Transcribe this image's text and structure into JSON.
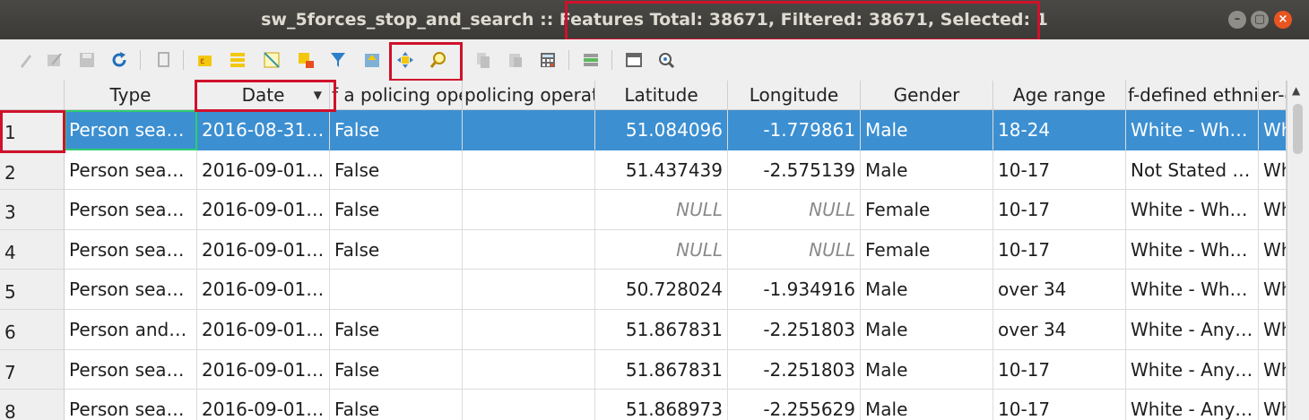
{
  "window": {
    "title_prefix": "sw_5forces_stop_and_search :: ",
    "title_stats": "Features Total: 38671, Filtered: 38671, Selected: 1",
    "min_symbol": "–",
    "max_symbol": "▢",
    "close_symbol": "×"
  },
  "toolbar": {
    "icons": [
      "edit-pencil-icon",
      "multi-edit-icon",
      "save-edits-icon",
      "reload-icon",
      "add-feature-icon",
      "delete-feature-icon",
      "select-expression-icon",
      "select-all-icon",
      "invert-selection-icon",
      "deselect-all-icon",
      "filter-select-icon",
      "move-selection-to-top-icon",
      "pan-map-to-selected-icon",
      "zoom-map-to-selected-icon",
      "copy-rows-icon",
      "paste-rows-icon",
      "field-calculator-icon",
      "conditional-formatting-icon",
      "dock-table-icon",
      "actions-icon"
    ]
  },
  "table": {
    "columns": [
      "Type",
      "Date",
      "f a policing ope",
      "policing operati",
      "Latitude",
      "Longitude",
      "Gender",
      "Age range",
      "f-defined ethni",
      "er-d"
    ],
    "sort_indicator": "▼",
    "rows": [
      {
        "num": "1",
        "type": "Person sea…",
        "date": "2016-08-31…",
        "policing": "False",
        "op": "",
        "lat": "51.084096",
        "lon": "-1.779861",
        "gender": "Male",
        "age": "18-24",
        "ethnic": "White - Wh…",
        "off": "Wh"
      },
      {
        "num": "2",
        "type": "Person sea…",
        "date": "2016-09-01…",
        "policing": "False",
        "op": "",
        "lat": "51.437439",
        "lon": "-2.575139",
        "gender": "Male",
        "age": "10-17",
        "ethnic": "Not Stated …",
        "off": "Wh"
      },
      {
        "num": "3",
        "type": "Person sea…",
        "date": "2016-09-01…",
        "policing": "False",
        "op": "",
        "lat": "NULL",
        "lon": "NULL",
        "gender": "Female",
        "age": "10-17",
        "ethnic": "White - Wh…",
        "off": "Wh"
      },
      {
        "num": "4",
        "type": "Person sea…",
        "date": "2016-09-01…",
        "policing": "False",
        "op": "",
        "lat": "NULL",
        "lon": "NULL",
        "gender": "Female",
        "age": "10-17",
        "ethnic": "White - Wh…",
        "off": "Wh"
      },
      {
        "num": "5",
        "type": "Person sea…",
        "date": "2016-09-01…",
        "policing": "",
        "op": "",
        "lat": "50.728024",
        "lon": "-1.934916",
        "gender": "Male",
        "age": "over 34",
        "ethnic": "White - Wh…",
        "off": "Wh"
      },
      {
        "num": "6",
        "type": "Person and…",
        "date": "2016-09-01…",
        "policing": "False",
        "op": "",
        "lat": "51.867831",
        "lon": "-2.251803",
        "gender": "Male",
        "age": "over 34",
        "ethnic": "White - Any…",
        "off": "Wh"
      },
      {
        "num": "7",
        "type": "Person sea…",
        "date": "2016-09-01…",
        "policing": "False",
        "op": "",
        "lat": "51.867831",
        "lon": "-2.251803",
        "gender": "Male",
        "age": "10-17",
        "ethnic": "White - Any…",
        "off": "Wh"
      },
      {
        "num": "8",
        "type": "Person sea…",
        "date": "2016-09-01…",
        "policing": "False",
        "op": "",
        "lat": "51.868973",
        "lon": "-2.255629",
        "gender": "Male",
        "age": "10-17",
        "ethnic": "White - Any…",
        "off": "Wh"
      }
    ]
  }
}
